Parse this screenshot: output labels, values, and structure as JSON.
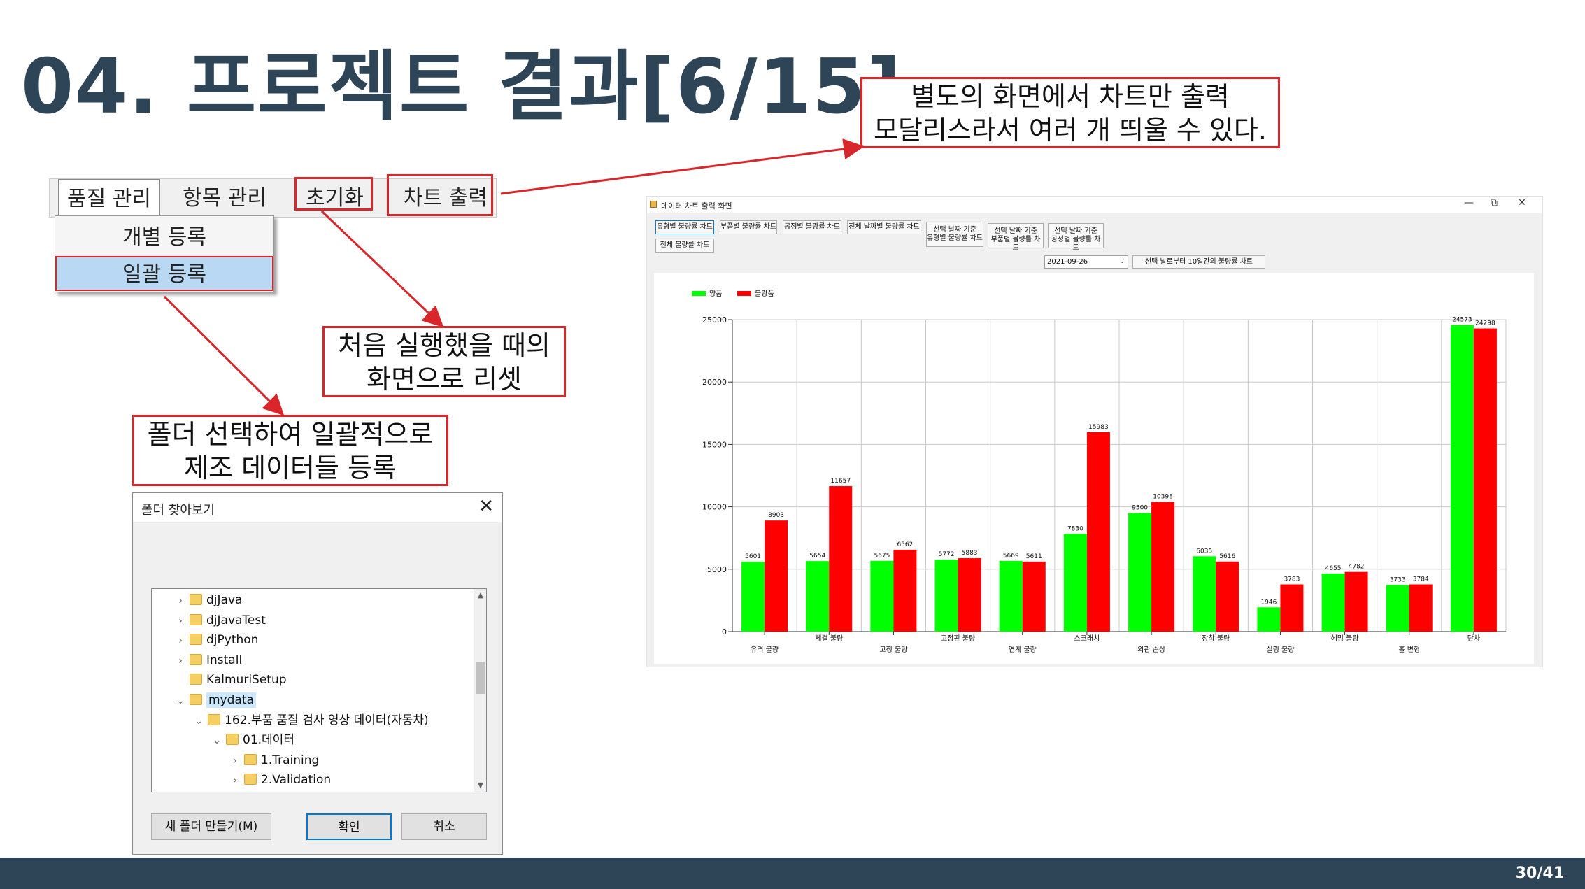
{
  "slide": {
    "title": "04. 프로젝트 결과[6/15]",
    "page": "30/41"
  },
  "callouts": {
    "chart_only": [
      "별도의 화면에서 차트만 출력",
      "모달리스라서 여러 개 띄울 수 있다."
    ],
    "reset": [
      "처음 실행했을 때의",
      "화면으로 리셋"
    ],
    "folder": [
      "폴더 선택하여 일괄적으로",
      "제조 데이터들 등록"
    ]
  },
  "menu": {
    "items": [
      "품질 관리",
      "항목 관리",
      "초기화",
      "차트 출력"
    ],
    "dropdown": [
      "개별 등록",
      "일괄 등록"
    ]
  },
  "dialog": {
    "title": "폴더 찾아보기",
    "close": "✕",
    "tree": [
      {
        "label": "djJava",
        "expander": "›",
        "level": 0
      },
      {
        "label": "djJavaTest",
        "expander": "›",
        "level": 0
      },
      {
        "label": "djPython",
        "expander": "›",
        "level": 0
      },
      {
        "label": "Install",
        "expander": "›",
        "level": 0
      },
      {
        "label": "KalmuriSetup",
        "expander": "",
        "level": 0
      },
      {
        "label": "mydata",
        "expander": "⌄",
        "level": 0,
        "selected": true
      },
      {
        "label": "162.부품 품질 검사 영상 데이터(자동차)",
        "expander": "⌄",
        "level": 1
      },
      {
        "label": "01.데이터",
        "expander": "⌄",
        "level": 2
      },
      {
        "label": "1.Training",
        "expander": "›",
        "level": 3
      },
      {
        "label": "2.Validation",
        "expander": "›",
        "level": 3
      }
    ],
    "buttons": {
      "new_folder": "새 폴더 만들기(M)",
      "ok": "확인",
      "cancel": "취소"
    }
  },
  "chart_window": {
    "title": "데이터 차트 출력 화면",
    "controls": {
      "minimize": "—",
      "restore": "⧉",
      "close": "✕"
    },
    "buttons": [
      "유형별 불량률 차트",
      "부품별 불량률 차트",
      "공정별 불량률 차트",
      "전체 날짜별 불량률 차트"
    ],
    "buttons_two_line": [
      [
        "선택 날짜 기준",
        "유형별 불량률 차트"
      ],
      [
        "선택 날짜 기준",
        "부품별 불량률 차트"
      ],
      [
        "선택 날짜 기준",
        "공정별 불량률 차트"
      ]
    ],
    "button_all": "전체 불량률 차트",
    "date_value": "2021-09-26",
    "button_10days": "선택 날로부터 10일간의 불량률 차트"
  },
  "chart_data": {
    "type": "bar",
    "categories": [
      "유격 불량",
      "체결 불량",
      "고정 불량",
      "고정핀 불량",
      "연계 불량",
      "스크래치",
      "외관 손상",
      "장착 불량",
      "실링 불량",
      "헤밍 불량",
      "홀 변형",
      "단차"
    ],
    "series": [
      {
        "name": "양품",
        "color": "#00ff00",
        "values": [
          5601,
          5654,
          5675,
          5772,
          5669,
          7830,
          9500,
          6035,
          1946,
          4655,
          3733,
          24573
        ]
      },
      {
        "name": "불량품",
        "color": "#ff0000",
        "values": [
          8903,
          11657,
          6562,
          5883,
          5611,
          15983,
          10398,
          5616,
          3783,
          4782,
          3784,
          24298
        ]
      }
    ],
    "yticks": [
      0,
      5000,
      10000,
      15000,
      20000,
      25000
    ],
    "ylim": [
      0,
      25000
    ],
    "grid": true,
    "legend": "top-left"
  },
  "colors": {
    "accent": "#d9262b",
    "title": "#2e4457",
    "footer": "#2e4457"
  }
}
